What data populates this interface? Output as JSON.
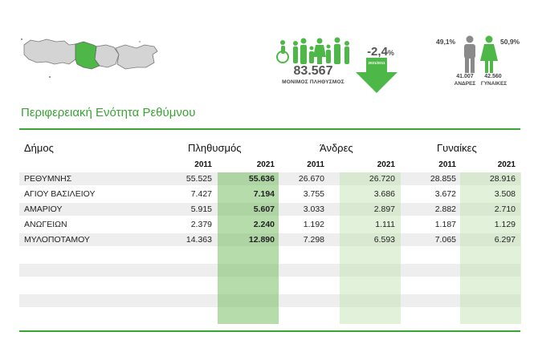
{
  "header": {
    "population_value": "83.567",
    "population_label": "ΜΟΝΙΜΟΣ ΠΛΗΘΥΣΜΟΣ",
    "change_value": "-2,4",
    "change_unit": "%",
    "change_years": "2021/2011",
    "men_pct": "49,1%",
    "women_pct": "50,9%",
    "men_count": "41.007",
    "women_count": "42.560",
    "men_label": "ΑΝΔΡΕΣ",
    "women_label": "ΓΥΝΑΙΚΕΣ",
    "colors": {
      "accent": "#3aa335",
      "map_grey": "#d4d4d4",
      "man_grey": "#8a8a8a",
      "woman_green": "#4db848"
    }
  },
  "title": "Περιφερειακή Ενότητα Ρεθύμνου",
  "table": {
    "col_name": "Δήμος",
    "group_population": "Πληθυσμός",
    "group_men": "Άνδρες",
    "group_women": "Γυναίκες",
    "year_a": "2011",
    "year_b": "2021",
    "rows": [
      {
        "name": "ΡΕΘΥΜΝΗΣ",
        "pop2011": "55.525",
        "pop2021": "55.636",
        "men2011": "26.670",
        "men2021": "26.720",
        "women2011": "28.855",
        "women2021": "28.916"
      },
      {
        "name": "ΑΓΙΟΥ ΒΑΣΙΛΕΙΟΥ",
        "pop2011": "7.427",
        "pop2021": "7.194",
        "men2011": "3.755",
        "men2021": "3.686",
        "women2011": "3.672",
        "women2021": "3.508"
      },
      {
        "name": "ΑΜΑΡΙΟΥ",
        "pop2011": "5.915",
        "pop2021": "5.607",
        "men2011": "3.033",
        "men2021": "2.897",
        "women2011": "2.882",
        "women2021": "2.710"
      },
      {
        "name": "ΑΝΩΓΕΙΩΝ",
        "pop2011": "2.379",
        "pop2021": "2.240",
        "men2011": "1.192",
        "men2021": "1.111",
        "women2011": "1.187",
        "women2021": "1.129"
      },
      {
        "name": "ΜΥΛΟΠΟΤΑΜΟΥ",
        "pop2011": "14.363",
        "pop2021": "12.890",
        "men2011": "7.298",
        "men2021": "6.593",
        "women2011": "7.065",
        "women2021": "6.297"
      }
    ]
  }
}
